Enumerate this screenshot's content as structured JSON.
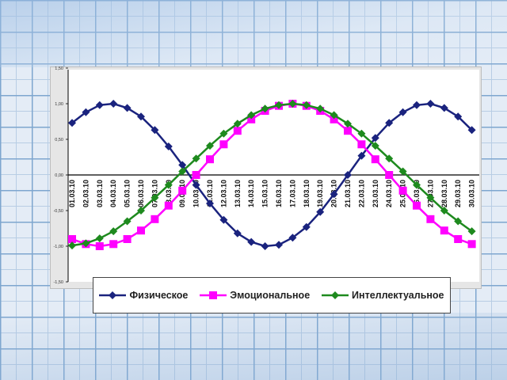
{
  "colors": {
    "physical": "#1a237e",
    "emotional": "#ff00ff",
    "intellectual": "#1e8a1e"
  },
  "legend": {
    "physical": "Физическое",
    "emotional": "Эмоциональное",
    "intellectual": "Интеллектуальное"
  },
  "chart_data": {
    "type": "line",
    "title": "",
    "xlabel": "",
    "ylabel": "",
    "grid": false,
    "legend_position": "bottom",
    "ylim": [
      -1.5,
      1.5
    ],
    "yticks": [
      "1,50",
      "1,00",
      "0,50",
      "0,00",
      "-0,50",
      "-1,00",
      "-1,50"
    ],
    "categories": [
      "01.03.10",
      "02.03.10",
      "03.03.10",
      "04.03.10",
      "05.03.10",
      "06.03.10",
      "07.03.10",
      "08.03.10",
      "09.03.10",
      "10.03.10",
      "11.03.10",
      "12.03.10",
      "13.03.10",
      "14.03.10",
      "15.03.10",
      "16.03.10",
      "17.03.10",
      "18.03.10",
      "19.03.10",
      "20.03.10",
      "21.03.10",
      "22.03.10",
      "23.03.10",
      "24.03.10",
      "25.03.10",
      "26.03.10",
      "27.03.10",
      "28.03.10",
      "29.03.10",
      "30.03.10"
    ],
    "series": [
      {
        "name": "Физическое",
        "color": "#1a237e",
        "marker": "diamond",
        "values": [
          0.73,
          0.88,
          0.98,
          1.0,
          0.94,
          0.82,
          0.63,
          0.4,
          0.14,
          -0.14,
          -0.4,
          -0.63,
          -0.82,
          -0.94,
          -1.0,
          -0.98,
          -0.88,
          -0.73,
          -0.52,
          -0.27,
          0.0,
          0.27,
          0.52,
          0.73,
          0.88,
          0.98,
          1.0,
          0.94,
          0.82,
          0.63
        ]
      },
      {
        "name": "Эмоциональное",
        "color": "#ff00ff",
        "marker": "square",
        "values": [
          -0.9,
          -0.97,
          -1.0,
          -0.97,
          -0.9,
          -0.78,
          -0.62,
          -0.43,
          -0.22,
          0.0,
          0.22,
          0.43,
          0.62,
          0.78,
          0.9,
          0.97,
          1.0,
          0.97,
          0.9,
          0.78,
          0.62,
          0.43,
          0.22,
          0.0,
          -0.22,
          -0.43,
          -0.62,
          -0.78,
          -0.9,
          -0.97
        ]
      },
      {
        "name": "Интеллектуальное",
        "color": "#1e8a1e",
        "marker": "diamond",
        "values": [
          -0.99,
          -0.96,
          -0.89,
          -0.79,
          -0.65,
          -0.5,
          -0.32,
          -0.14,
          0.05,
          0.23,
          0.41,
          0.58,
          0.72,
          0.84,
          0.93,
          0.98,
          1.0,
          0.98,
          0.93,
          0.84,
          0.72,
          0.58,
          0.41,
          0.23,
          0.05,
          -0.14,
          -0.32,
          -0.5,
          -0.65,
          -0.79
        ]
      }
    ]
  }
}
